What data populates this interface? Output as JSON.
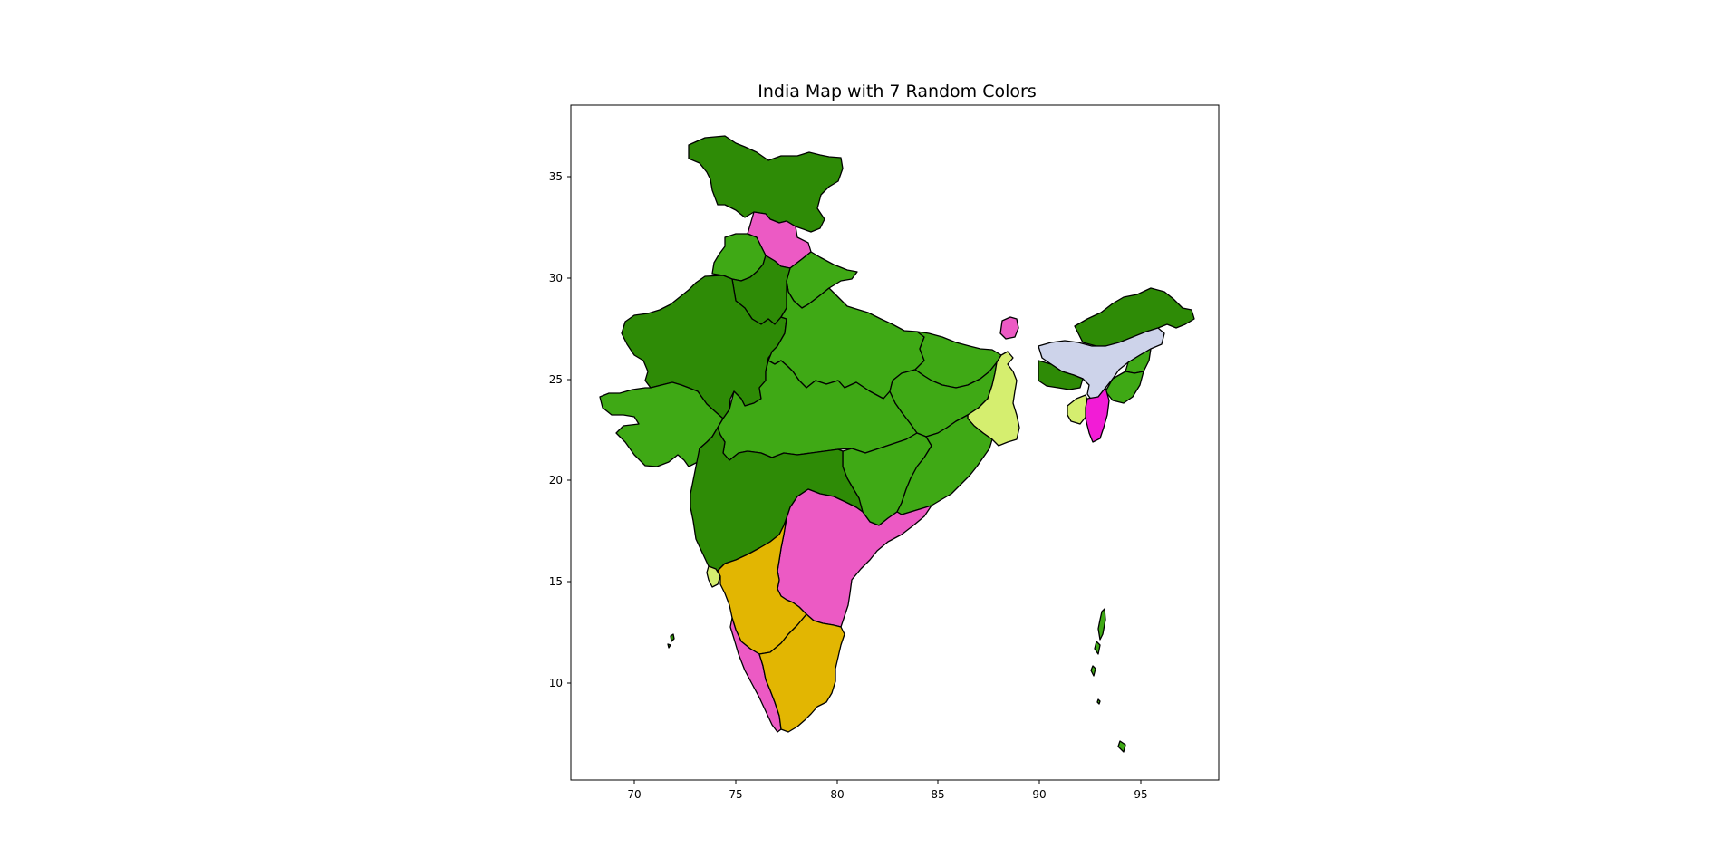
{
  "title": "India Map with 7 Random Colors",
  "colors": {
    "dark_green": "#2e8b06",
    "mid_green": "#3fa915",
    "pink": "#ec5ac4",
    "magenta": "#f21cd6",
    "yellow_green": "#d5ee6f",
    "lavender": "#cdd3ea",
    "mustard": "#e2b602"
  },
  "chart_data": {
    "type": "map",
    "title": "India Map with 7 Random Colors",
    "xlabel": "",
    "ylabel": "",
    "xlim": [
      67,
      99
    ],
    "ylim": [
      5.2,
      38.5
    ],
    "xticks": [
      "70",
      "75",
      "80",
      "85",
      "90",
      "95"
    ],
    "yticks": [
      "10",
      "15",
      "20",
      "25",
      "30",
      "35"
    ],
    "grid": false,
    "regions": [
      {
        "id": "jammu-kashmir-ladakh",
        "color": "dark_green"
      },
      {
        "id": "himachal-pradesh",
        "color": "pink"
      },
      {
        "id": "punjab",
        "color": "mid_green"
      },
      {
        "id": "uttarakhand",
        "color": "mid_green"
      },
      {
        "id": "haryana",
        "color": "dark_green"
      },
      {
        "id": "rajasthan",
        "color": "dark_green"
      },
      {
        "id": "uttar-pradesh",
        "color": "mid_green"
      },
      {
        "id": "bihar",
        "color": "mid_green"
      },
      {
        "id": "gujarat",
        "color": "mid_green"
      },
      {
        "id": "madhya-pradesh",
        "color": "mid_green"
      },
      {
        "id": "jharkhand",
        "color": "mid_green"
      },
      {
        "id": "west-bengal",
        "color": "yellow_green"
      },
      {
        "id": "sikkim",
        "color": "pink"
      },
      {
        "id": "chhattisgarh",
        "color": "mid_green"
      },
      {
        "id": "odisha",
        "color": "mid_green"
      },
      {
        "id": "maharashtra",
        "color": "dark_green"
      },
      {
        "id": "telangana-andhra-pradesh",
        "color": "pink"
      },
      {
        "id": "goa",
        "color": "yellow_green"
      },
      {
        "id": "karnataka",
        "color": "mustard"
      },
      {
        "id": "kerala",
        "color": "pink"
      },
      {
        "id": "tamil-nadu",
        "color": "mustard"
      },
      {
        "id": "arunachal-pradesh",
        "color": "dark_green"
      },
      {
        "id": "assam",
        "color": "lavender"
      },
      {
        "id": "meghalaya",
        "color": "dark_green"
      },
      {
        "id": "nagaland",
        "color": "mid_green"
      },
      {
        "id": "manipur",
        "color": "mid_green"
      },
      {
        "id": "tripura",
        "color": "yellow_green"
      },
      {
        "id": "mizoram",
        "color": "magenta"
      },
      {
        "id": "lakshadweep",
        "color": "dark_green"
      },
      {
        "id": "andaman-nicobar",
        "color": "mid_green"
      }
    ]
  }
}
